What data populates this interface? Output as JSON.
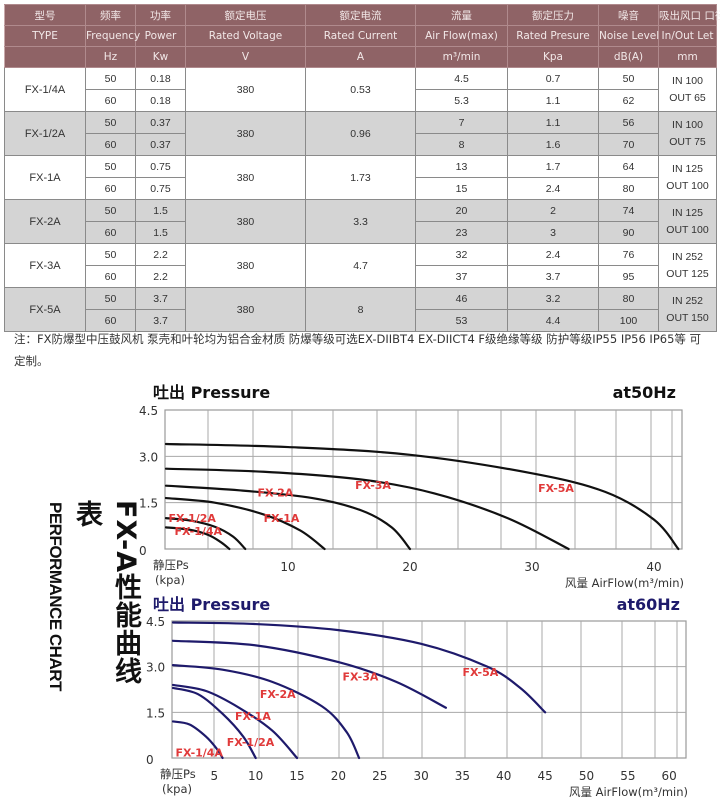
{
  "table": {
    "headers_cn": [
      "型号",
      "频率",
      "功率",
      "额定电压",
      "额定电流",
      "流量",
      "额定压力",
      "噪音",
      "吸出风口 口径"
    ],
    "headers_en": [
      "TYPE",
      "Frequency",
      "Power",
      "Rated Voltage",
      "Rated Current",
      "Air Flow(max)",
      "Rated Presure",
      "Noise Level",
      "In/Out Let"
    ],
    "units": [
      "",
      "Hz",
      "Kw",
      "V",
      "A",
      "m³/min",
      "Kpa",
      "dB(A)",
      "mm"
    ],
    "models": [
      {
        "type": "FX-1/4A",
        "voltage": "380",
        "current": "0.53",
        "in": "IN 100",
        "out": "OUT 65",
        "rows": [
          {
            "freq": "50",
            "power": "0.18",
            "flow": "4.5",
            "pressure": "0.7",
            "noise": "50"
          },
          {
            "freq": "60",
            "power": "0.18",
            "flow": "5.3",
            "pressure": "1.1",
            "noise": "62"
          }
        ]
      },
      {
        "type": "FX-1/2A",
        "voltage": "380",
        "current": "0.96",
        "in": "IN 100",
        "out": "OUT 75",
        "rows": [
          {
            "freq": "50",
            "power": "0.37",
            "flow": "7",
            "pressure": "1.1",
            "noise": "56"
          },
          {
            "freq": "60",
            "power": "0.37",
            "flow": "8",
            "pressure": "1.6",
            "noise": "70"
          }
        ]
      },
      {
        "type": "FX-1A",
        "voltage": "380",
        "current": "1.73",
        "in": "IN 125",
        "out": "OUT 100",
        "rows": [
          {
            "freq": "50",
            "power": "0.75",
            "flow": "13",
            "pressure": "1.7",
            "noise": "64"
          },
          {
            "freq": "60",
            "power": "0.75",
            "flow": "15",
            "pressure": "2.4",
            "noise": "80"
          }
        ]
      },
      {
        "type": "FX-2A",
        "voltage": "380",
        "current": "3.3",
        "in": "IN 125",
        "out": "OUT 100",
        "rows": [
          {
            "freq": "50",
            "power": "1.5",
            "flow": "20",
            "pressure": "2",
            "noise": "74"
          },
          {
            "freq": "60",
            "power": "1.5",
            "flow": "23",
            "pressure": "3",
            "noise": "90"
          }
        ]
      },
      {
        "type": "FX-3A",
        "voltage": "380",
        "current": "4.7",
        "in": "IN 252",
        "out": "OUT 125",
        "rows": [
          {
            "freq": "50",
            "power": "2.2",
            "flow": "32",
            "pressure": "2.4",
            "noise": "76"
          },
          {
            "freq": "60",
            "power": "2.2",
            "flow": "37",
            "pressure": "3.7",
            "noise": "95"
          }
        ]
      },
      {
        "type": "FX-5A",
        "voltage": "380",
        "current": "8",
        "in": "IN 252",
        "out": "OUT 150",
        "rows": [
          {
            "freq": "50",
            "power": "3.7",
            "flow": "46",
            "pressure": "3.2",
            "noise": "80"
          },
          {
            "freq": "60",
            "power": "3.7",
            "flow": "53",
            "pressure": "4.4",
            "noise": "100"
          }
        ]
      }
    ]
  },
  "note": {
    "line1": "注：FX防爆型中压鼓风机 泵壳和叶轮均为铝合金材质 防爆等级可选EX-DIIBT4 EX-DIICT4  F级绝缘等级  防护等级IP55 IP56  IP65等 可",
    "line2": "定制。"
  },
  "side_title": {
    "cn": "FX-A性能曲线表",
    "en": "PERFORMANCE CHART"
  },
  "colors": {
    "header_bg": "#8f6366",
    "row_gray": "#d4d4d4",
    "curve_50": "#111111",
    "curve_60": "#1e1a6b",
    "label_red": "#e03a3a",
    "title_60": "#1e1a6b"
  },
  "chart_data": [
    {
      "type": "line",
      "title": "吐出 Pressure",
      "subtitle": "at50Hz",
      "ylabel": "静压Ps",
      "ylabel_unit": "(kpa)",
      "xlabel": "风量 AirFlow(m³/min)",
      "xlim": [
        0,
        42
      ],
      "ylim": [
        0,
        4.5
      ],
      "xticks": [
        "10",
        "20",
        "30",
        "40"
      ],
      "xtick_values": [
        10,
        20,
        30,
        40
      ],
      "yticks": [
        "0",
        "1.5",
        "3.0",
        "4.5"
      ],
      "ytick_values": [
        0,
        1.5,
        3.0,
        4.5
      ],
      "grid": true,
      "series": [
        {
          "name": "FX-1/4A",
          "x": [
            0,
            2,
            3.5,
            4.5,
            5.2
          ],
          "y": [
            0.7,
            0.62,
            0.45,
            0.22,
            0
          ]
        },
        {
          "name": "FX-1/2A",
          "x": [
            0,
            2,
            4,
            5.5,
            6.5
          ],
          "y": [
            1.0,
            0.92,
            0.72,
            0.4,
            0
          ]
        },
        {
          "name": "FX-1A",
          "x": [
            0,
            4,
            8,
            11,
            13
          ],
          "y": [
            1.65,
            1.5,
            1.12,
            0.6,
            0
          ]
        },
        {
          "name": "FX-2A",
          "x": [
            0,
            6,
            12,
            16,
            18.5,
            20
          ],
          "y": [
            2.05,
            1.9,
            1.65,
            1.25,
            0.7,
            0
          ]
        },
        {
          "name": "FX-3A",
          "x": [
            0,
            8,
            16,
            22,
            28,
            33
          ],
          "y": [
            2.6,
            2.5,
            2.25,
            1.8,
            1.0,
            0
          ]
        },
        {
          "name": "FX-5A",
          "x": [
            0,
            10,
            20,
            30,
            36,
            40,
            42
          ],
          "y": [
            3.4,
            3.3,
            3.05,
            2.45,
            1.85,
            0.95,
            0
          ]
        }
      ],
      "labels": [
        "FX-1/4A",
        "FX-1/2A",
        "FX-1A",
        "FX-2A",
        "FX-3A",
        "FX-5A"
      ]
    },
    {
      "type": "line",
      "title": "吐出 Pressure",
      "subtitle": "at60Hz",
      "ylabel": "静压Ps",
      "ylabel_unit": "(kpa)",
      "xlabel": "风量 AirFlow(m³/min)",
      "xlim": [
        0,
        63
      ],
      "ylim": [
        0,
        4.5
      ],
      "xticks": [
        "5",
        "10",
        "15",
        "20",
        "25",
        "30",
        "35",
        "40",
        "45",
        "50",
        "55",
        "60"
      ],
      "xtick_values": [
        5,
        10,
        15,
        20,
        25,
        30,
        35,
        40,
        45,
        50,
        55,
        60
      ],
      "yticks": [
        "0",
        "1.5",
        "3.0",
        "4.5"
      ],
      "ytick_values": [
        0,
        1.5,
        3.0,
        4.5
      ],
      "grid": true,
      "series": [
        {
          "name": "FX-1/4A",
          "x": [
            0,
            2,
            4,
            5.3,
            6
          ],
          "y": [
            1.2,
            1.1,
            0.7,
            0.3,
            0
          ]
        },
        {
          "name": "FX-1/2A",
          "x": [
            0,
            3,
            6,
            8.5,
            10
          ],
          "y": [
            2.3,
            2.1,
            1.45,
            0.7,
            0
          ]
        },
        {
          "name": "FX-1A",
          "x": [
            0,
            4,
            8,
            12,
            15
          ],
          "y": [
            2.4,
            2.2,
            1.65,
            0.9,
            0
          ]
        },
        {
          "name": "FX-2A",
          "x": [
            0,
            6,
            12,
            18,
            21,
            22.5
          ],
          "y": [
            3.05,
            2.9,
            2.5,
            1.7,
            0.85,
            0
          ]
        },
        {
          "name": "FX-3A",
          "x": [
            0,
            10,
            20,
            27,
            33
          ],
          "y": [
            3.85,
            3.7,
            3.15,
            2.5,
            1.65
          ]
        },
        {
          "name": "FX-5A",
          "x": [
            0,
            10,
            20,
            30,
            38,
            42,
            45
          ],
          "y": [
            4.45,
            4.4,
            4.2,
            3.75,
            3.0,
            2.3,
            1.5
          ]
        }
      ],
      "labels": [
        "FX-1/4A",
        "FX-1/2A",
        "FX-1A",
        "FX-2A",
        "FX-3A",
        "FX-5A"
      ]
    }
  ]
}
